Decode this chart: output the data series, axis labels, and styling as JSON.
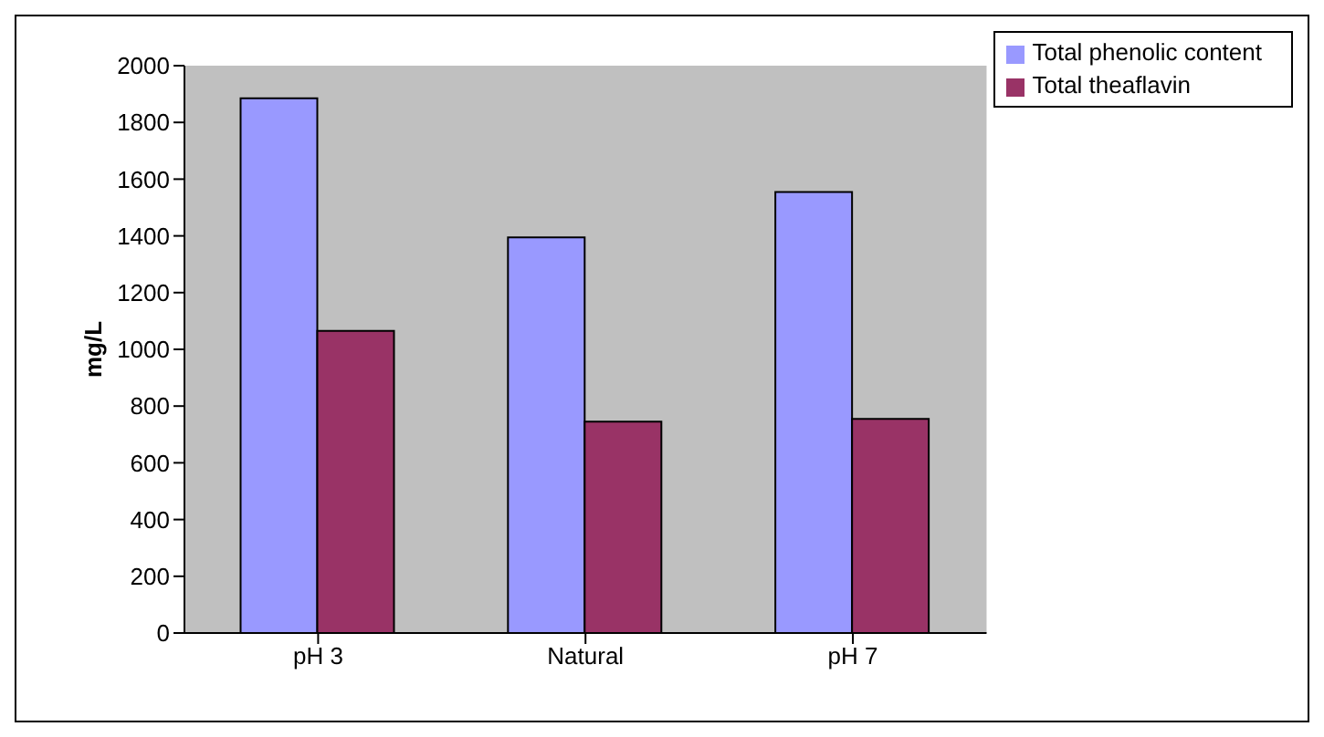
{
  "chart_data": {
    "type": "bar",
    "ylabel": "mg/L",
    "categories": [
      "pH 3",
      "Natural",
      "pH 7"
    ],
    "series": [
      {
        "name": "Total phenolic content",
        "color": "#9999ff",
        "values": [
          1885,
          1395,
          1555
        ]
      },
      {
        "name": "Total theaflavin",
        "color": "#993366",
        "values": [
          1065,
          745,
          755
        ]
      }
    ],
    "ylim": [
      0,
      2000
    ],
    "yticks": [
      0,
      200,
      400,
      600,
      800,
      1000,
      1200,
      1400,
      1600,
      1800,
      2000
    ],
    "grid": false,
    "legend": "top right"
  }
}
